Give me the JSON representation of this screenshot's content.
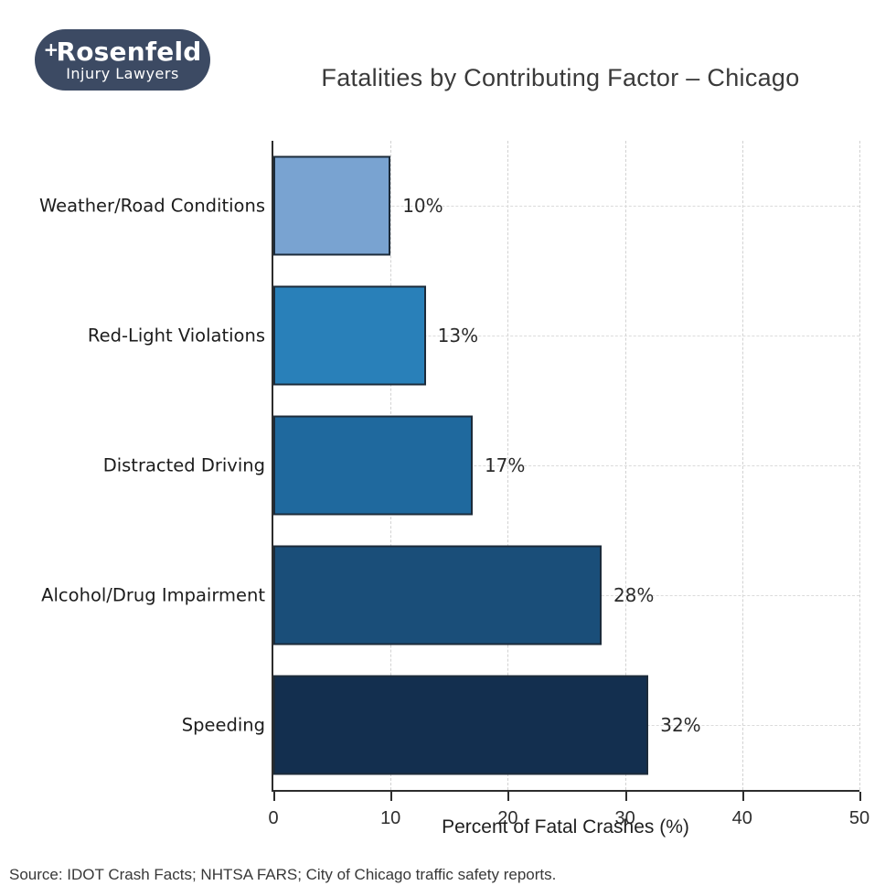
{
  "logo": {
    "bg_color": "#3c4a63",
    "cross_icon": "+",
    "line1": "Rosenfeld",
    "line2": "Injury Lawyers"
  },
  "chart_data": {
    "type": "bar",
    "orientation": "horizontal",
    "title": "Fatalities by Contributing Factor – Chicago",
    "categories": [
      "Weather/Road Conditions",
      "Red-Light Violations",
      "Distracted Driving",
      "Alcohol/Drug Impairment",
      "Speeding"
    ],
    "values": [
      10,
      13,
      17,
      28,
      32
    ],
    "value_labels": [
      "10%",
      "13%",
      "17%",
      "28%",
      "32%"
    ],
    "bar_colors": [
      "#79a3d1",
      "#2980b9",
      "#1f699e",
      "#1a4e79",
      "#132f4f"
    ],
    "bar_edge_color": "#1c2b3a",
    "xlabel": "Percent of Fatal Crashes (%)",
    "xlim": [
      0,
      50
    ],
    "xticks": [
      0,
      10,
      20,
      30,
      40,
      50
    ],
    "grid": "dashed",
    "legend": "none"
  },
  "footer": {
    "source": "Source: IDOT Crash Facts; NHTSA FARS; City of Chicago traffic safety reports."
  }
}
